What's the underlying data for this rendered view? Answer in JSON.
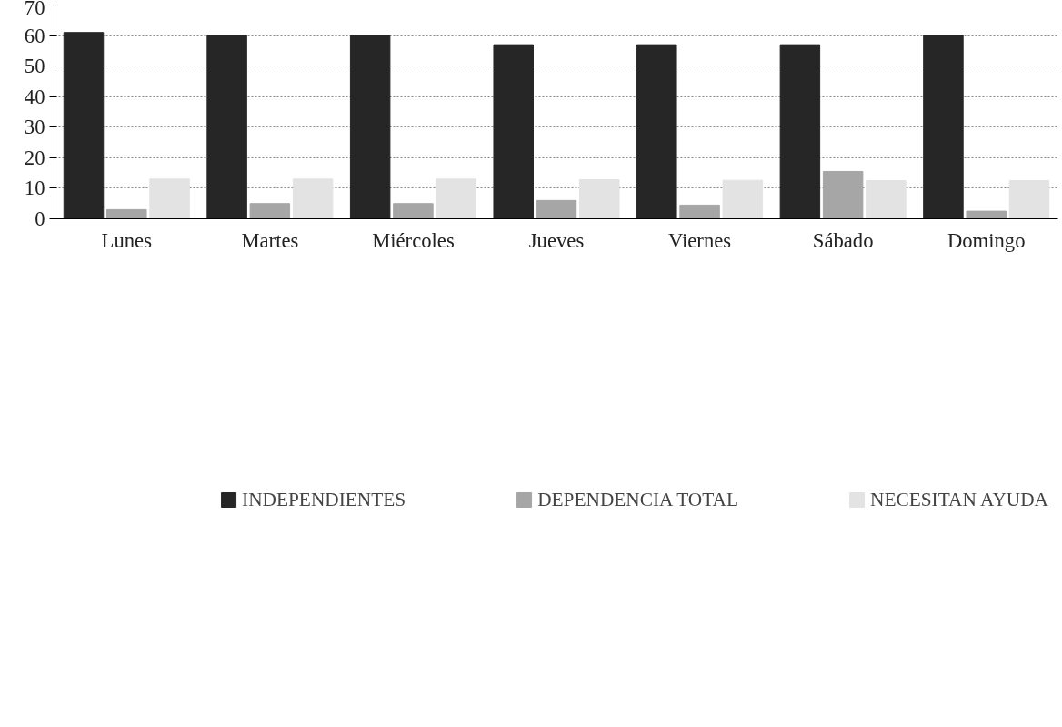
{
  "chart_data": {
    "type": "bar",
    "categories": [
      "Lunes",
      "Martes",
      "Miércoles",
      "Jueves",
      "Viernes",
      "Sábado",
      "Domingo"
    ],
    "series": [
      {
        "name": "INDEPENDIENTES",
        "color": "#262626",
        "values": [
          61,
          60,
          60,
          57,
          57,
          57,
          60
        ]
      },
      {
        "name": "DEPENDENCIA TOTAL",
        "color": "#a6a6a6",
        "values": [
          3,
          5,
          5,
          6,
          4.5,
          15.5,
          2.5
        ]
      },
      {
        "name": "NECESITAN AYUDA",
        "color": "#e3e3e3",
        "values": [
          13,
          13,
          13,
          12.8,
          12.6,
          12.5,
          12.5
        ]
      }
    ],
    "ylim": [
      0,
      70
    ],
    "yticks": [
      0,
      10,
      20,
      30,
      40,
      50,
      60,
      70
    ],
    "grid": "y",
    "legend": "bottom"
  }
}
